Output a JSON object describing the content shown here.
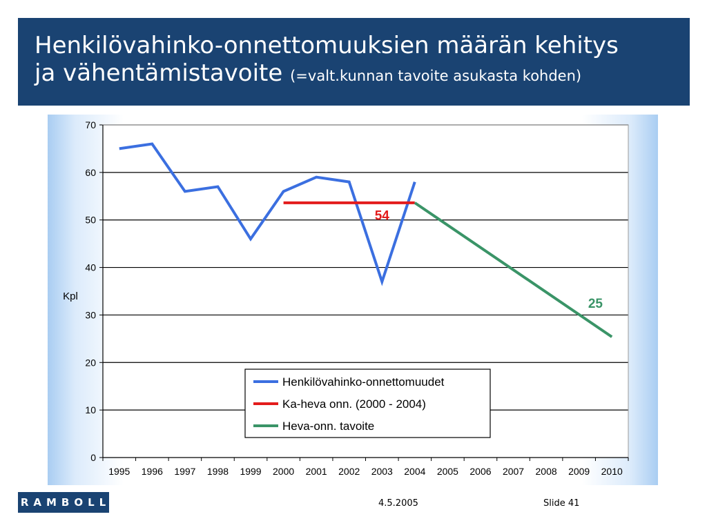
{
  "header": {
    "title_line1": "Henkilövahinko-onnettomuuksien määrän kehitys",
    "title_line2": "ja vähentämistavoite",
    "title_sub": "(=valt.kunnan tavoite asukasta kohden)"
  },
  "footer": {
    "logo_text": "RAMBOLL",
    "date": "4.5.2005",
    "slide": "Slide 41"
  },
  "chart_data": {
    "type": "line",
    "ylabel": "Kpl",
    "xlabel": "",
    "ylim": [
      0,
      70
    ],
    "yticks": [
      0,
      10,
      20,
      30,
      40,
      50,
      60,
      70
    ],
    "categories": [
      "1995",
      "1996",
      "1997",
      "1998",
      "1999",
      "2000",
      "2001",
      "2002",
      "2003",
      "2004",
      "2005",
      "2006",
      "2007",
      "2008",
      "2009",
      "2010"
    ],
    "grid": true,
    "legend_position": "bottom-center",
    "series": [
      {
        "name": "Henkilövahinko-onnettomuudet",
        "color": "#3b6fe0",
        "points": [
          [
            1995,
            65
          ],
          [
            1996,
            66
          ],
          [
            1997,
            56
          ],
          [
            1998,
            57
          ],
          [
            1999,
            46
          ],
          [
            2000,
            56
          ],
          [
            2001,
            59
          ],
          [
            2002,
            58
          ],
          [
            2003,
            37
          ],
          [
            2004,
            58
          ]
        ]
      },
      {
        "name": "Ka-heva onn. (2000 - 2004)",
        "color": "#e31c1c",
        "points": [
          [
            2000,
            53.6
          ],
          [
            2004,
            53.6
          ]
        ]
      },
      {
        "name": "Heva-onn. tavoite",
        "color": "#3a9467",
        "points": [
          [
            2004,
            53.6
          ],
          [
            2010,
            25.4
          ]
        ]
      }
    ],
    "annotations": [
      {
        "text": "54",
        "x": 2003,
        "y": 50,
        "color": "#e31c1c"
      },
      {
        "text": "25",
        "x": 2009.5,
        "y": 31.5,
        "color": "#3a9467"
      }
    ]
  }
}
